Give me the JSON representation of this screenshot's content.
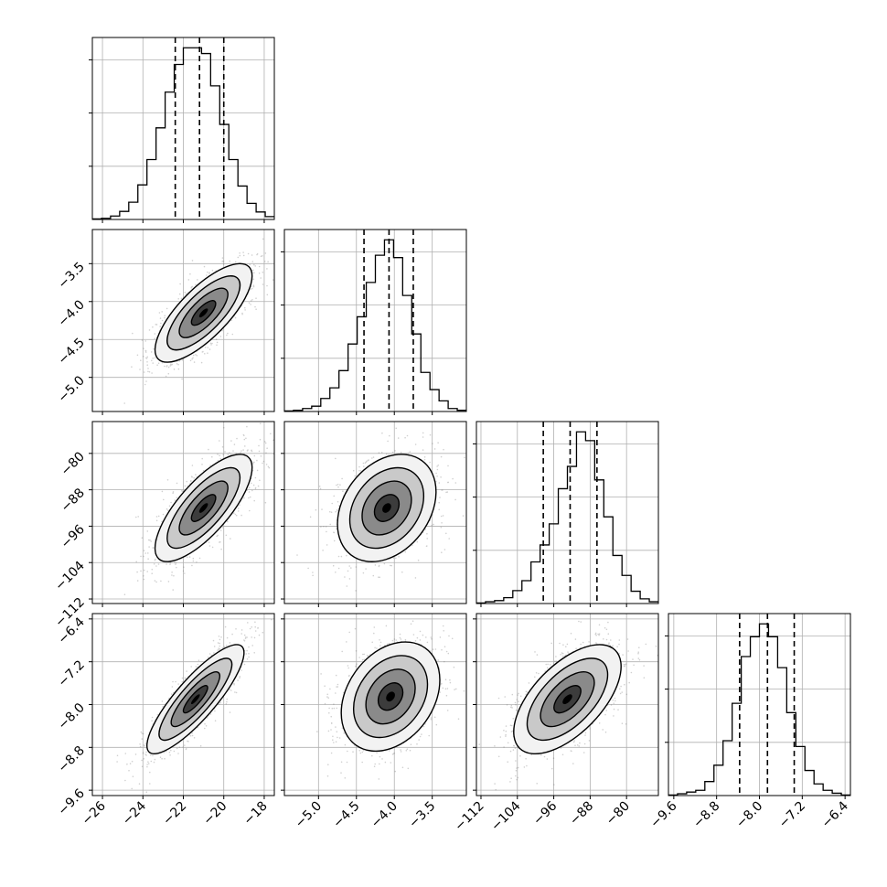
{
  "chart_data": {
    "type": "corner",
    "parameters": [
      {
        "range": [
          -26.5,
          -17.5
        ],
        "ticks": [
          -26,
          -24,
          -22,
          -20,
          -18
        ],
        "tick_labels": [
          "−26",
          "−24",
          "−22",
          "−20",
          "−18"
        ],
        "quantiles": [
          -22.4,
          -21.2,
          -20.0
        ],
        "hist": {
          "lo": -26.5,
          "hi": -17.5,
          "counts": [
            1,
            2,
            6,
            14,
            30,
            60,
            104,
            159,
            221,
            269,
            298,
            298,
            288,
            232,
            165,
            104,
            58,
            28,
            13,
            5
          ]
        }
      },
      {
        "range": [
          -5.45,
          -3.05
        ],
        "ticks": [
          -5.0,
          -4.5,
          -4.0,
          -3.5
        ],
        "tick_labels": [
          "−5.0",
          "−4.5",
          "−4.0",
          "−3.5"
        ],
        "quantiles": [
          -4.4,
          -4.07,
          -3.75
        ],
        "hist": {
          "lo": -5.45,
          "hi": -3.05,
          "counts": [
            1,
            2,
            5,
            9,
            22,
            40,
            69,
            114,
            160,
            218,
            264,
            290,
            260,
            196,
            131,
            66,
            37,
            18,
            5,
            2
          ]
        }
      },
      {
        "range": [
          -113,
          -73
        ],
        "ticks": [
          -112,
          -104,
          -96,
          -88,
          -80
        ],
        "tick_labels": [
          "−112",
          "−104",
          "−96",
          "−88",
          "−80"
        ],
        "quantiles": [
          -98.3,
          -92.4,
          -86.5
        ],
        "hist": {
          "lo": -113,
          "hi": -73,
          "counts": [
            1,
            3,
            5,
            10,
            22,
            39,
            71,
            100,
            136,
            196,
            234,
            293,
            278,
            211,
            148,
            82,
            48,
            21,
            8,
            3
          ]
        }
      },
      {
        "range": [
          -9.7,
          -6.3
        ],
        "ticks": [
          -9.6,
          -8.8,
          -8.0,
          -7.2,
          -6.4
        ],
        "tick_labels": [
          "−9.6",
          "−8.8",
          "−8.0",
          "−7.2",
          "−6.4"
        ],
        "quantiles": [
          -8.37,
          -7.85,
          -7.35
        ],
        "hist": {
          "lo": -9.7,
          "hi": -6.3,
          "counts": [
            1,
            3,
            6,
            9,
            24,
            52,
            94,
            158,
            238,
            272,
            294,
            272,
            219,
            142,
            84,
            43,
            20,
            9,
            4,
            1
          ]
        }
      }
    ],
    "pairs": [
      {
        "row": 1,
        "col": 0,
        "corr": 0.75,
        "peak": [
          -21.0,
          -4.15
        ]
      },
      {
        "row": 2,
        "col": 0,
        "corr": 0.75,
        "peak": [
          -21.0,
          -92.0
        ]
      },
      {
        "row": 2,
        "col": 1,
        "corr": 0.3,
        "peak": [
          -4.1,
          -92.0
        ]
      },
      {
        "row": 3,
        "col": 0,
        "corr": 0.85,
        "peak": [
          -21.4,
          -7.9
        ]
      },
      {
        "row": 3,
        "col": 1,
        "corr": 0.3,
        "peak": [
          -4.05,
          -7.85
        ]
      },
      {
        "row": 3,
        "col": 2,
        "corr": 0.6,
        "peak": [
          -93.0,
          -7.9
        ]
      }
    ],
    "contour_levels": [
      0.5,
      1.0,
      1.5,
      2.0
    ],
    "grid": true,
    "colors": {
      "line": "#000000",
      "scatter": "#777777",
      "grid": "#b0b0b0",
      "background": "#ffffff"
    }
  }
}
